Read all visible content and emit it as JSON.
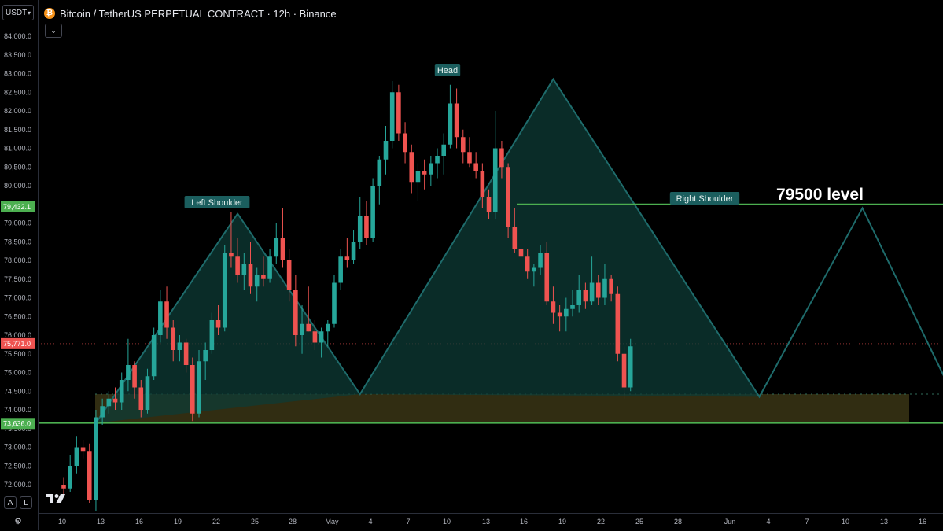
{
  "header": {
    "currency": "USDT",
    "title": "Bitcoin / TetherUS PERPETUAL CONTRACT · 12h · Binance",
    "coin_icon": "bitcoin-icon"
  },
  "controls": {
    "collapse_icon": "chevron-down-icon",
    "auto_label": "A",
    "log_label": "L",
    "settings_icon": "gear-icon",
    "logo": "tradingview-logo"
  },
  "colors": {
    "up": "#26a69a",
    "down": "#ef5350",
    "pattern_line": "#1e6b6b",
    "pattern_fill": "#0e3b36",
    "level_line": "#4caf50",
    "zone_fill": "#3a3515",
    "label_bg": "#1b5e5e",
    "price_tag": "#4caf50"
  },
  "chart_data": {
    "type": "candlestick",
    "interval": "12h",
    "y_axis": {
      "min": 71300,
      "max": 84350,
      "tick_labels": [
        "84,000.0",
        "83,500.0",
        "83,000.0",
        "82,500.0",
        "82,000.0",
        "81,500.0",
        "81,000.0",
        "80,500.0",
        "80,000.0",
        "79,500.0",
        "79,000.0",
        "78,500.0",
        "78,000.0",
        "77,500.0",
        "77,000.0",
        "76,500.0",
        "76,000.0",
        "75,500.0",
        "75,000.0",
        "74,500.0",
        "74,000.0",
        "73,500.0",
        "73,000.0",
        "72,500.0",
        "72,000.0"
      ],
      "price_tags": [
        {
          "label": "79,432.1",
          "value": 79432.1
        },
        {
          "label": "75,771.0",
          "value": 75771.0
        },
        {
          "label": "73,636.0",
          "value": 73636.0
        }
      ]
    },
    "x_axis": {
      "tick_labels": [
        "10",
        "13",
        "16",
        "19",
        "22",
        "25",
        "28",
        "May",
        "4",
        "7",
        "10",
        "13",
        "16",
        "19",
        "22",
        "25",
        "28",
        "Jun",
        "4",
        "7",
        "10",
        "13",
        "16",
        "19"
      ]
    },
    "annotations": {
      "left_shoulder": "Left Shoulder",
      "head": "Head",
      "right_shoulder": "Right Shoulder",
      "level_text": "79500 level"
    },
    "levels": [
      {
        "name": "resistance",
        "value": 79500
      },
      {
        "name": "support",
        "value": 73650
      }
    ],
    "zone": {
      "low": 73650,
      "high": 74420
    },
    "pattern_points": [
      {
        "date_index": 5,
        "price": 73650
      },
      {
        "date_index": 27,
        "price": 79250
      },
      {
        "date_index": 46,
        "price": 74420
      },
      {
        "date_index": 76,
        "price": 82850
      },
      {
        "date_index": 108,
        "price": 74350
      },
      {
        "date_index": 124,
        "price": 79400
      },
      {
        "date_index": 138,
        "price": 74420
      }
    ],
    "candles": [
      {
        "o": 72000,
        "h": 72200,
        "l": 71700,
        "c": 71900
      },
      {
        "o": 71900,
        "h": 72800,
        "l": 71800,
        "c": 72500
      },
      {
        "o": 72500,
        "h": 73300,
        "l": 72300,
        "c": 73000
      },
      {
        "o": 73000,
        "h": 73200,
        "l": 72700,
        "c": 72900
      },
      {
        "o": 72900,
        "h": 73100,
        "l": 71500,
        "c": 71600
      },
      {
        "o": 71600,
        "h": 74000,
        "l": 71300,
        "c": 73800
      },
      {
        "o": 73800,
        "h": 74300,
        "l": 73600,
        "c": 74100
      },
      {
        "o": 74100,
        "h": 74500,
        "l": 73900,
        "c": 74300
      },
      {
        "o": 74300,
        "h": 74600,
        "l": 74000,
        "c": 74200
      },
      {
        "o": 74200,
        "h": 75000,
        "l": 74000,
        "c": 74800
      },
      {
        "o": 74800,
        "h": 75900,
        "l": 74500,
        "c": 75200
      },
      {
        "o": 75200,
        "h": 75300,
        "l": 74300,
        "c": 74600
      },
      {
        "o": 74600,
        "h": 74800,
        "l": 73800,
        "c": 74000
      },
      {
        "o": 74000,
        "h": 75100,
        "l": 73900,
        "c": 74900
      },
      {
        "o": 74900,
        "h": 76200,
        "l": 74800,
        "c": 76000
      },
      {
        "o": 76000,
        "h": 77200,
        "l": 75800,
        "c": 76900
      },
      {
        "o": 76900,
        "h": 77300,
        "l": 75900,
        "c": 76200
      },
      {
        "o": 76200,
        "h": 76400,
        "l": 75300,
        "c": 75600
      },
      {
        "o": 75600,
        "h": 76000,
        "l": 75300,
        "c": 75800
      },
      {
        "o": 75800,
        "h": 75900,
        "l": 75000,
        "c": 75200
      },
      {
        "o": 75200,
        "h": 75400,
        "l": 73700,
        "c": 73900
      },
      {
        "o": 73900,
        "h": 75600,
        "l": 73800,
        "c": 75300
      },
      {
        "o": 75300,
        "h": 75800,
        "l": 74800,
        "c": 75600
      },
      {
        "o": 75600,
        "h": 76600,
        "l": 75500,
        "c": 76400
      },
      {
        "o": 76400,
        "h": 76800,
        "l": 76000,
        "c": 76200
      },
      {
        "o": 76200,
        "h": 78400,
        "l": 76100,
        "c": 78200
      },
      {
        "o": 78200,
        "h": 79300,
        "l": 77800,
        "c": 78100
      },
      {
        "o": 78100,
        "h": 78600,
        "l": 77400,
        "c": 77600
      },
      {
        "o": 77600,
        "h": 78200,
        "l": 77200,
        "c": 77900
      },
      {
        "o": 77900,
        "h": 78500,
        "l": 77100,
        "c": 77300
      },
      {
        "o": 77300,
        "h": 77800,
        "l": 76900,
        "c": 77600
      },
      {
        "o": 77600,
        "h": 78100,
        "l": 77300,
        "c": 77500
      },
      {
        "o": 77500,
        "h": 78300,
        "l": 77400,
        "c": 78100
      },
      {
        "o": 78100,
        "h": 79000,
        "l": 77900,
        "c": 78600
      },
      {
        "o": 78600,
        "h": 79400,
        "l": 77800,
        "c": 78000
      },
      {
        "o": 78000,
        "h": 78300,
        "l": 76900,
        "c": 77200
      },
      {
        "o": 77200,
        "h": 77600,
        "l": 75700,
        "c": 76000
      },
      {
        "o": 76000,
        "h": 76800,
        "l": 75500,
        "c": 76300
      },
      {
        "o": 76300,
        "h": 77300,
        "l": 76100,
        "c": 76100
      },
      {
        "o": 76100,
        "h": 76400,
        "l": 75600,
        "c": 75800
      },
      {
        "o": 75800,
        "h": 76200,
        "l": 75400,
        "c": 76100
      },
      {
        "o": 76100,
        "h": 76400,
        "l": 75700,
        "c": 76300
      },
      {
        "o": 76300,
        "h": 77600,
        "l": 76200,
        "c": 77400
      },
      {
        "o": 77400,
        "h": 78300,
        "l": 77200,
        "c": 78100
      },
      {
        "o": 78100,
        "h": 78600,
        "l": 77800,
        "c": 78000
      },
      {
        "o": 78000,
        "h": 78800,
        "l": 77900,
        "c": 78500
      },
      {
        "o": 78500,
        "h": 79700,
        "l": 78300,
        "c": 79200
      },
      {
        "o": 79200,
        "h": 79600,
        "l": 78400,
        "c": 78600
      },
      {
        "o": 78600,
        "h": 80200,
        "l": 78500,
        "c": 80000
      },
      {
        "o": 80000,
        "h": 80800,
        "l": 79500,
        "c": 80700
      },
      {
        "o": 80700,
        "h": 81600,
        "l": 80300,
        "c": 81200
      },
      {
        "o": 81200,
        "h": 82800,
        "l": 81000,
        "c": 82500
      },
      {
        "o": 82500,
        "h": 82700,
        "l": 81200,
        "c": 81400
      },
      {
        "o": 81400,
        "h": 81700,
        "l": 80600,
        "c": 80900
      },
      {
        "o": 80900,
        "h": 81100,
        "l": 79800,
        "c": 80100
      },
      {
        "o": 80100,
        "h": 80600,
        "l": 79600,
        "c": 80400
      },
      {
        "o": 80400,
        "h": 80700,
        "l": 79900,
        "c": 80300
      },
      {
        "o": 80300,
        "h": 80800,
        "l": 80000,
        "c": 80600
      },
      {
        "o": 80600,
        "h": 81000,
        "l": 80200,
        "c": 80800
      },
      {
        "o": 80800,
        "h": 81400,
        "l": 80300,
        "c": 81100
      },
      {
        "o": 81100,
        "h": 82700,
        "l": 81000,
        "c": 82200
      },
      {
        "o": 82200,
        "h": 82600,
        "l": 81000,
        "c": 81300
      },
      {
        "o": 81300,
        "h": 81500,
        "l": 80600,
        "c": 80900
      },
      {
        "o": 80900,
        "h": 81300,
        "l": 80500,
        "c": 80600
      },
      {
        "o": 80600,
        "h": 80900,
        "l": 80200,
        "c": 80400
      },
      {
        "o": 80400,
        "h": 80600,
        "l": 79400,
        "c": 79700
      },
      {
        "o": 79700,
        "h": 79900,
        "l": 79100,
        "c": 79300
      },
      {
        "o": 79300,
        "h": 82000,
        "l": 79100,
        "c": 81000
      },
      {
        "o": 81000,
        "h": 81200,
        "l": 80200,
        "c": 80500
      },
      {
        "o": 80500,
        "h": 80600,
        "l": 78600,
        "c": 78900
      },
      {
        "o": 78900,
        "h": 79400,
        "l": 78200,
        "c": 78300
      },
      {
        "o": 78300,
        "h": 78500,
        "l": 77700,
        "c": 78100
      },
      {
        "o": 78100,
        "h": 78300,
        "l": 77500,
        "c": 77700
      },
      {
        "o": 77700,
        "h": 77900,
        "l": 77300,
        "c": 77800
      },
      {
        "o": 77800,
        "h": 78400,
        "l": 77600,
        "c": 78200
      },
      {
        "o": 78200,
        "h": 78500,
        "l": 76800,
        "c": 76900
      },
      {
        "o": 76900,
        "h": 77300,
        "l": 76300,
        "c": 76600
      },
      {
        "o": 76600,
        "h": 76800,
        "l": 76100,
        "c": 76500
      },
      {
        "o": 76500,
        "h": 77000,
        "l": 76100,
        "c": 76700
      },
      {
        "o": 76700,
        "h": 77200,
        "l": 76500,
        "c": 76800
      },
      {
        "o": 76800,
        "h": 77600,
        "l": 76600,
        "c": 77200
      },
      {
        "o": 77200,
        "h": 77400,
        "l": 76700,
        "c": 76900
      },
      {
        "o": 76900,
        "h": 78100,
        "l": 76800,
        "c": 77400
      },
      {
        "o": 77400,
        "h": 77600,
        "l": 76800,
        "c": 77000
      },
      {
        "o": 77000,
        "h": 77900,
        "l": 76800,
        "c": 77500
      },
      {
        "o": 77500,
        "h": 77600,
        "l": 76900,
        "c": 77100
      },
      {
        "o": 77100,
        "h": 77300,
        "l": 75300,
        "c": 75500
      },
      {
        "o": 75500,
        "h": 75700,
        "l": 74300,
        "c": 74600
      },
      {
        "o": 74600,
        "h": 75900,
        "l": 74500,
        "c": 75700
      }
    ]
  }
}
